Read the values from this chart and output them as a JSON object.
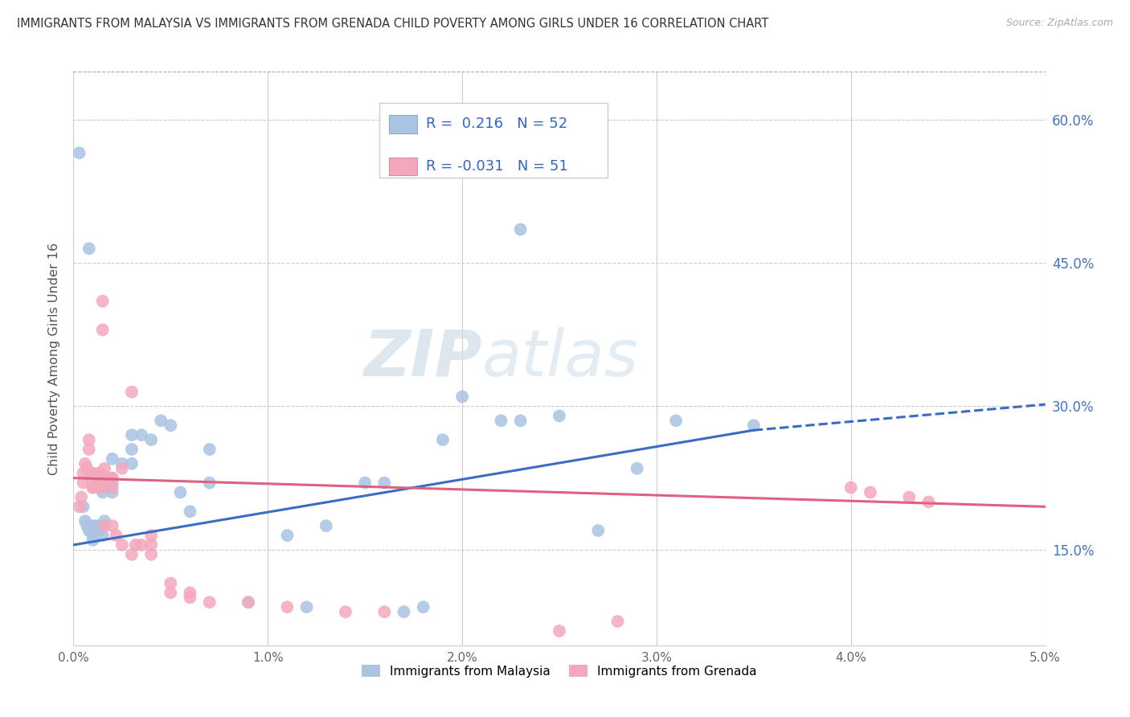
{
  "title": "IMMIGRANTS FROM MALAYSIA VS IMMIGRANTS FROM GRENADA CHILD POVERTY AMONG GIRLS UNDER 16 CORRELATION CHART",
  "source": "Source: ZipAtlas.com",
  "xlim": [
    0.0,
    0.05
  ],
  "ylim": [
    0.05,
    0.65
  ],
  "ylabel": "Child Poverty Among Girls Under 16",
  "legend_label1": "Immigrants from Malaysia",
  "legend_label2": "Immigrants from Grenada",
  "R1": "0.216",
  "N1": "52",
  "R2": "-0.031",
  "N2": "51",
  "color_malaysia": "#aac4e2",
  "color_grenada": "#f4a8bc",
  "trendline_malaysia": "#3a6cc4",
  "trendline_grenada": "#e06080",
  "watermark_zip": "ZIP",
  "watermark_atlas": "atlas",
  "trendline_m_x0": 0.0,
  "trendline_m_y0": 0.155,
  "trendline_m_x1": 0.035,
  "trendline_m_y1": 0.275,
  "trendline_m_dash_x0": 0.035,
  "trendline_m_dash_y0": 0.275,
  "trendline_m_dash_x1": 0.05,
  "trendline_m_dash_y1": 0.302,
  "trendline_g_x0": 0.0,
  "trendline_g_y0": 0.225,
  "trendline_g_x1": 0.05,
  "trendline_g_y1": 0.195,
  "malaysia_scatter": [
    [
      0.0003,
      0.565
    ],
    [
      0.0008,
      0.465
    ],
    [
      0.0005,
      0.195
    ],
    [
      0.0006,
      0.18
    ],
    [
      0.0007,
      0.175
    ],
    [
      0.0008,
      0.17
    ],
    [
      0.0009,
      0.17
    ],
    [
      0.001,
      0.165
    ],
    [
      0.001,
      0.175
    ],
    [
      0.001,
      0.16
    ],
    [
      0.0012,
      0.175
    ],
    [
      0.0013,
      0.17
    ],
    [
      0.0014,
      0.175
    ],
    [
      0.0015,
      0.165
    ],
    [
      0.0016,
      0.18
    ],
    [
      0.0015,
      0.21
    ],
    [
      0.0016,
      0.22
    ],
    [
      0.0018,
      0.215
    ],
    [
      0.002,
      0.21
    ],
    [
      0.002,
      0.22
    ],
    [
      0.002,
      0.225
    ],
    [
      0.002,
      0.245
    ],
    [
      0.0025,
      0.24
    ],
    [
      0.003,
      0.24
    ],
    [
      0.003,
      0.255
    ],
    [
      0.003,
      0.27
    ],
    [
      0.0035,
      0.27
    ],
    [
      0.004,
      0.265
    ],
    [
      0.0045,
      0.285
    ],
    [
      0.005,
      0.28
    ],
    [
      0.0055,
      0.21
    ],
    [
      0.006,
      0.19
    ],
    [
      0.007,
      0.22
    ],
    [
      0.007,
      0.255
    ],
    [
      0.009,
      0.095
    ],
    [
      0.011,
      0.165
    ],
    [
      0.013,
      0.175
    ],
    [
      0.015,
      0.22
    ],
    [
      0.016,
      0.22
    ],
    [
      0.019,
      0.265
    ],
    [
      0.02,
      0.31
    ],
    [
      0.022,
      0.285
    ],
    [
      0.023,
      0.285
    ],
    [
      0.025,
      0.29
    ],
    [
      0.027,
      0.17
    ],
    [
      0.029,
      0.235
    ],
    [
      0.031,
      0.285
    ],
    [
      0.035,
      0.28
    ],
    [
      0.023,
      0.485
    ],
    [
      0.012,
      0.09
    ],
    [
      0.017,
      0.085
    ],
    [
      0.018,
      0.09
    ]
  ],
  "grenada_scatter": [
    [
      0.0003,
      0.195
    ],
    [
      0.0004,
      0.205
    ],
    [
      0.0005,
      0.22
    ],
    [
      0.0005,
      0.23
    ],
    [
      0.0006,
      0.24
    ],
    [
      0.0007,
      0.235
    ],
    [
      0.0008,
      0.255
    ],
    [
      0.0008,
      0.265
    ],
    [
      0.0009,
      0.225
    ],
    [
      0.001,
      0.215
    ],
    [
      0.001,
      0.23
    ],
    [
      0.001,
      0.215
    ],
    [
      0.0012,
      0.22
    ],
    [
      0.0013,
      0.215
    ],
    [
      0.0013,
      0.23
    ],
    [
      0.0014,
      0.22
    ],
    [
      0.0014,
      0.23
    ],
    [
      0.0015,
      0.215
    ],
    [
      0.0016,
      0.235
    ],
    [
      0.0015,
      0.38
    ],
    [
      0.0015,
      0.41
    ],
    [
      0.0018,
      0.225
    ],
    [
      0.002,
      0.215
    ],
    [
      0.002,
      0.225
    ],
    [
      0.0025,
      0.235
    ],
    [
      0.003,
      0.315
    ],
    [
      0.0016,
      0.175
    ],
    [
      0.002,
      0.175
    ],
    [
      0.0022,
      0.165
    ],
    [
      0.0025,
      0.155
    ],
    [
      0.003,
      0.145
    ],
    [
      0.0032,
      0.155
    ],
    [
      0.0035,
      0.155
    ],
    [
      0.004,
      0.145
    ],
    [
      0.004,
      0.155
    ],
    [
      0.004,
      0.165
    ],
    [
      0.005,
      0.115
    ],
    [
      0.005,
      0.105
    ],
    [
      0.006,
      0.105
    ],
    [
      0.006,
      0.1
    ],
    [
      0.007,
      0.095
    ],
    [
      0.009,
      0.095
    ],
    [
      0.011,
      0.09
    ],
    [
      0.014,
      0.085
    ],
    [
      0.016,
      0.085
    ],
    [
      0.025,
      0.065
    ],
    [
      0.028,
      0.075
    ],
    [
      0.04,
      0.215
    ],
    [
      0.041,
      0.21
    ],
    [
      0.043,
      0.205
    ],
    [
      0.044,
      0.2
    ]
  ]
}
